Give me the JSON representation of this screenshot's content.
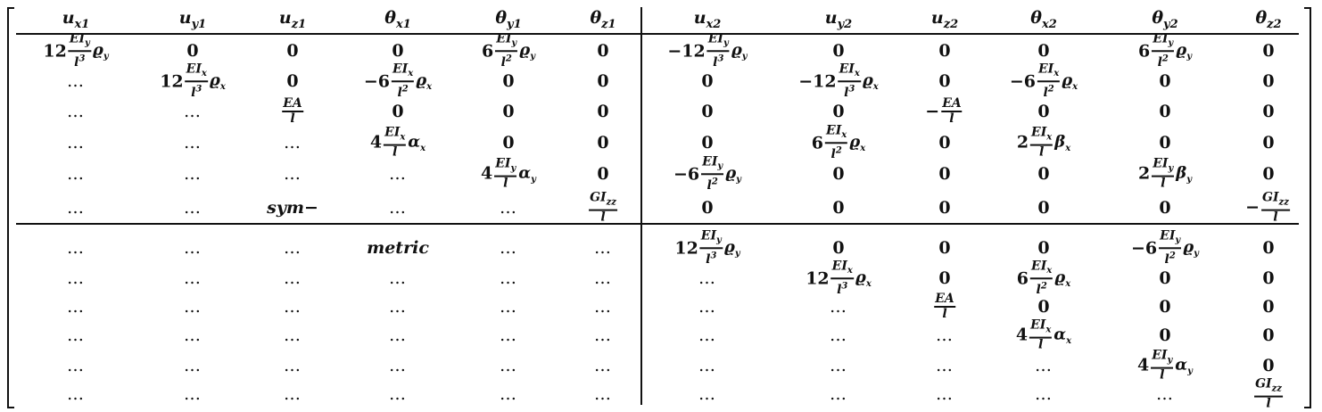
{
  "headers": [
    {
      "base": "u",
      "sub": "x1"
    },
    {
      "base": "u",
      "sub": "y1"
    },
    {
      "base": "u",
      "sub": "z1"
    },
    {
      "base": "θ",
      "sub": "x1"
    },
    {
      "base": "θ",
      "sub": "y1"
    },
    {
      "base": "θ",
      "sub": "z1"
    },
    {
      "base": "u",
      "sub": "x2"
    },
    {
      "base": "u",
      "sub": "y2"
    },
    {
      "base": "u",
      "sub": "z2"
    },
    {
      "base": "θ",
      "sub": "x2"
    },
    {
      "base": "θ",
      "sub": "y2"
    },
    {
      "base": "θ",
      "sub": "z2"
    }
  ],
  "matrix": [
    [
      {
        "coef": "12",
        "num": "EI",
        "num_sub": "y",
        "den": "l",
        "den_sup": "3",
        "tail": "ϱ",
        "tail_sub": "y"
      },
      "0",
      "0",
      "0",
      {
        "coef": "6",
        "num": "EI",
        "num_sub": "y",
        "den": "l",
        "den_sup": "2",
        "tail": "ϱ",
        "tail_sub": "y"
      },
      "0",
      {
        "coef": "−12",
        "num": "EI",
        "num_sub": "y",
        "den": "l",
        "den_sup": "3",
        "tail": "ϱ",
        "tail_sub": "y"
      },
      "0",
      "0",
      "0",
      {
        "coef": "6",
        "num": "EI",
        "num_sub": "y",
        "den": "l",
        "den_sup": "2",
        "tail": "ϱ",
        "tail_sub": "y"
      },
      "0"
    ],
    [
      "…",
      {
        "coef": "12",
        "num": "EI",
        "num_sub": "x",
        "den": "l",
        "den_sup": "3",
        "tail": "ϱ",
        "tail_sub": "x"
      },
      "0",
      {
        "coef": "−6",
        "num": "EI",
        "num_sub": "x",
        "den": "l",
        "den_sup": "2",
        "tail": "ϱ",
        "tail_sub": "x"
      },
      "0",
      "0",
      "0",
      {
        "coef": "−12",
        "num": "EI",
        "num_sub": "x",
        "den": "l",
        "den_sup": "3",
        "tail": "ϱ",
        "tail_sub": "x"
      },
      "0",
      {
        "coef": "−6",
        "num": "EI",
        "num_sub": "x",
        "den": "l",
        "den_sup": "2",
        "tail": "ϱ",
        "tail_sub": "x"
      },
      "0",
      "0"
    ],
    [
      "…",
      "…",
      {
        "coef": "",
        "num": "EA",
        "den": "l"
      },
      "0",
      "0",
      "0",
      "0",
      "0",
      {
        "coef": "−",
        "num": "EA",
        "den": "l"
      },
      "0",
      "0",
      "0"
    ],
    [
      "…",
      "…",
      "…",
      {
        "coef": "4",
        "num": "EI",
        "num_sub": "x",
        "den": "l",
        "tail": "α",
        "tail_sub": "x"
      },
      "0",
      "0",
      "0",
      {
        "coef": "6",
        "num": "EI",
        "num_sub": "x",
        "den": "l",
        "den_sup": "2",
        "tail": "ϱ",
        "tail_sub": "x"
      },
      "0",
      {
        "coef": "2",
        "num": "EI",
        "num_sub": "x",
        "den": "l",
        "tail": "β",
        "tail_sub": "x"
      },
      "0",
      "0"
    ],
    [
      "…",
      "…",
      "…",
      "…",
      {
        "coef": "4",
        "num": "EI",
        "num_sub": "y",
        "den": "l",
        "tail": "α",
        "tail_sub": "y"
      },
      "0",
      {
        "coef": "−6",
        "num": "EI",
        "num_sub": "y",
        "den": "l",
        "den_sup": "2",
        "tail": "ϱ",
        "tail_sub": "y"
      },
      "0",
      "0",
      "0",
      {
        "coef": "2",
        "num": "EI",
        "num_sub": "y",
        "den": "l",
        "tail": "β",
        "tail_sub": "y"
      },
      "0"
    ],
    [
      "…",
      "…",
      "sym−",
      "…",
      "…",
      {
        "coef": "",
        "num": "GI",
        "num_sub": "zz",
        "den": "l"
      },
      "0",
      "0",
      "0",
      "0",
      "0",
      {
        "coef": "−",
        "num": "GI",
        "num_sub": "zz",
        "den": "l"
      }
    ],
    [
      "…",
      "…",
      "…",
      "metric",
      "…",
      "…",
      {
        "coef": "12",
        "num": "EI",
        "num_sub": "y",
        "den": "l",
        "den_sup": "3",
        "tail": "ϱ",
        "tail_sub": "y"
      },
      "0",
      "0",
      "0",
      {
        "coef": "−6",
        "num": "EI",
        "num_sub": "y",
        "den": "l",
        "den_sup": "2",
        "tail": "ϱ",
        "tail_sub": "y"
      },
      "0"
    ],
    [
      "…",
      "…",
      "…",
      "…",
      "…",
      "…",
      "…",
      {
        "coef": "12",
        "num": "EI",
        "num_sub": "x",
        "den": "l",
        "den_sup": "3",
        "tail": "ϱ",
        "tail_sub": "x"
      },
      "0",
      {
        "coef": "6",
        "num": "EI",
        "num_sub": "x",
        "den": "l",
        "den_sup": "2",
        "tail": "ϱ",
        "tail_sub": "x"
      },
      "0",
      "0"
    ],
    [
      "…",
      "…",
      "…",
      "…",
      "…",
      "…",
      "…",
      "…",
      {
        "coef": "",
        "num": "EA",
        "den": "l"
      },
      "0",
      "0",
      "0"
    ],
    [
      "…",
      "…",
      "…",
      "…",
      "…",
      "…",
      "…",
      "…",
      "…",
      {
        "coef": "4",
        "num": "EI",
        "num_sub": "x",
        "den": "l",
        "tail": "α",
        "tail_sub": "x"
      },
      "0",
      "0"
    ],
    [
      "…",
      "…",
      "…",
      "…",
      "…",
      "…",
      "…",
      "…",
      "…",
      "…",
      {
        "coef": "4",
        "num": "EI",
        "num_sub": "y",
        "den": "l",
        "tail": "α",
        "tail_sub": "y"
      },
      "0"
    ],
    [
      "…",
      "…",
      "…",
      "…",
      "…",
      "…",
      "…",
      "…",
      "…",
      "…",
      "…",
      {
        "coef": "",
        "num": "GI",
        "num_sub": "zz",
        "den": "l"
      }
    ]
  ]
}
